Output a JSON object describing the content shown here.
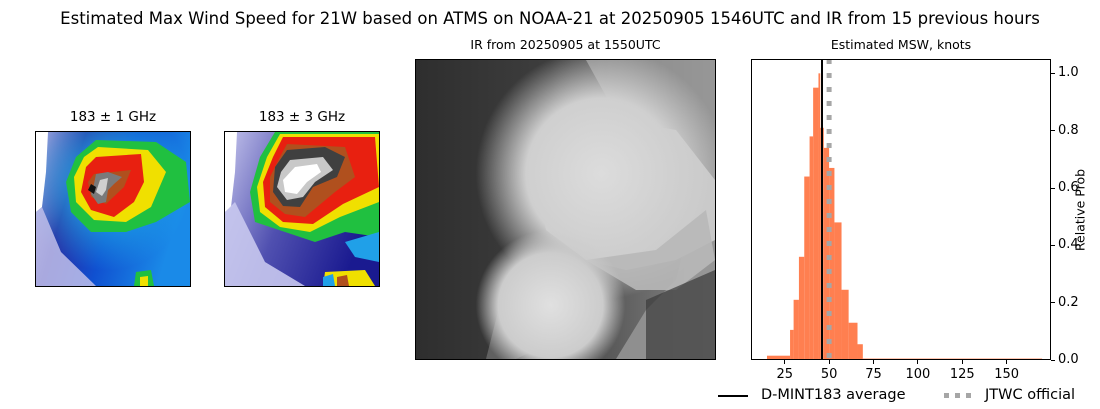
{
  "figure": {
    "suptitle": "Estimated Max Wind Speed for 21W based on ATMS on NOAA-21 at 20250905 1546UTC and IR from 15 previous hours"
  },
  "panels": {
    "mw1": {
      "title": "183 ± 1 GHz"
    },
    "mw3": {
      "title": "183 ± 3 GHz"
    },
    "ir": {
      "title": "IR from 20250905 at 1550UTC"
    },
    "hist": {
      "title": "Estimated MSW, knots",
      "ylabel": "Relative Prob"
    }
  },
  "legend": {
    "items": [
      {
        "label": "D-MINT183 average",
        "style": "solid",
        "color": "#000000"
      },
      {
        "label": "JTWC official",
        "style": "dotted",
        "color": "#a6a6a6"
      }
    ]
  },
  "colors": {
    "bar": "#ff7f50",
    "mean_line": "#000000",
    "official_line": "#a6a6a6"
  },
  "chart_data": {
    "type": "bar",
    "title": "Estimated MSW, knots",
    "xlabel": "",
    "ylabel": "Relative Prob",
    "xlim": [
      6,
      175
    ],
    "ylim": [
      0,
      1.05
    ],
    "xticks": [
      25,
      50,
      75,
      100,
      125,
      150
    ],
    "yticks": [
      0.0,
      0.2,
      0.4,
      0.6,
      0.8,
      1.0
    ],
    "ytick_labels": [
      "0.0",
      "0.2",
      "0.4",
      "0.6",
      "0.8",
      "1.0"
    ],
    "yaxis_position": "right",
    "grid": false,
    "bins": [
      {
        "x0": 15,
        "x1": 28,
        "value": 0.015
      },
      {
        "x0": 28,
        "x1": 30,
        "value": 0.105
      },
      {
        "x0": 30,
        "x1": 33,
        "value": 0.21
      },
      {
        "x0": 33,
        "x1": 36,
        "value": 0.36
      },
      {
        "x0": 36,
        "x1": 39,
        "value": 0.64
      },
      {
        "x0": 39,
        "x1": 41,
        "value": 0.78
      },
      {
        "x0": 41,
        "x1": 44,
        "value": 0.95
      },
      {
        "x0": 44,
        "x1": 45,
        "value": 1.0
      },
      {
        "x0": 45,
        "x1": 47,
        "value": 0.81
      },
      {
        "x0": 47,
        "x1": 50,
        "value": 0.74
      },
      {
        "x0": 50,
        "x1": 53,
        "value": 0.67
      },
      {
        "x0": 53,
        "x1": 57,
        "value": 0.48
      },
      {
        "x0": 57,
        "x1": 61,
        "value": 0.245
      },
      {
        "x0": 61,
        "x1": 66,
        "value": 0.13
      },
      {
        "x0": 66,
        "x1": 69,
        "value": 0.055
      },
      {
        "x0": 69,
        "x1": 170,
        "value": 0.005
      }
    ],
    "vlines": [
      {
        "name": "D-MINT183 average",
        "x": 46,
        "style": "solid",
        "color": "#000000"
      },
      {
        "name": "JTWC official",
        "x": 50,
        "style": "dotted",
        "color": "#a6a6a6"
      }
    ],
    "legend_position": "bottom-right, below axes"
  }
}
